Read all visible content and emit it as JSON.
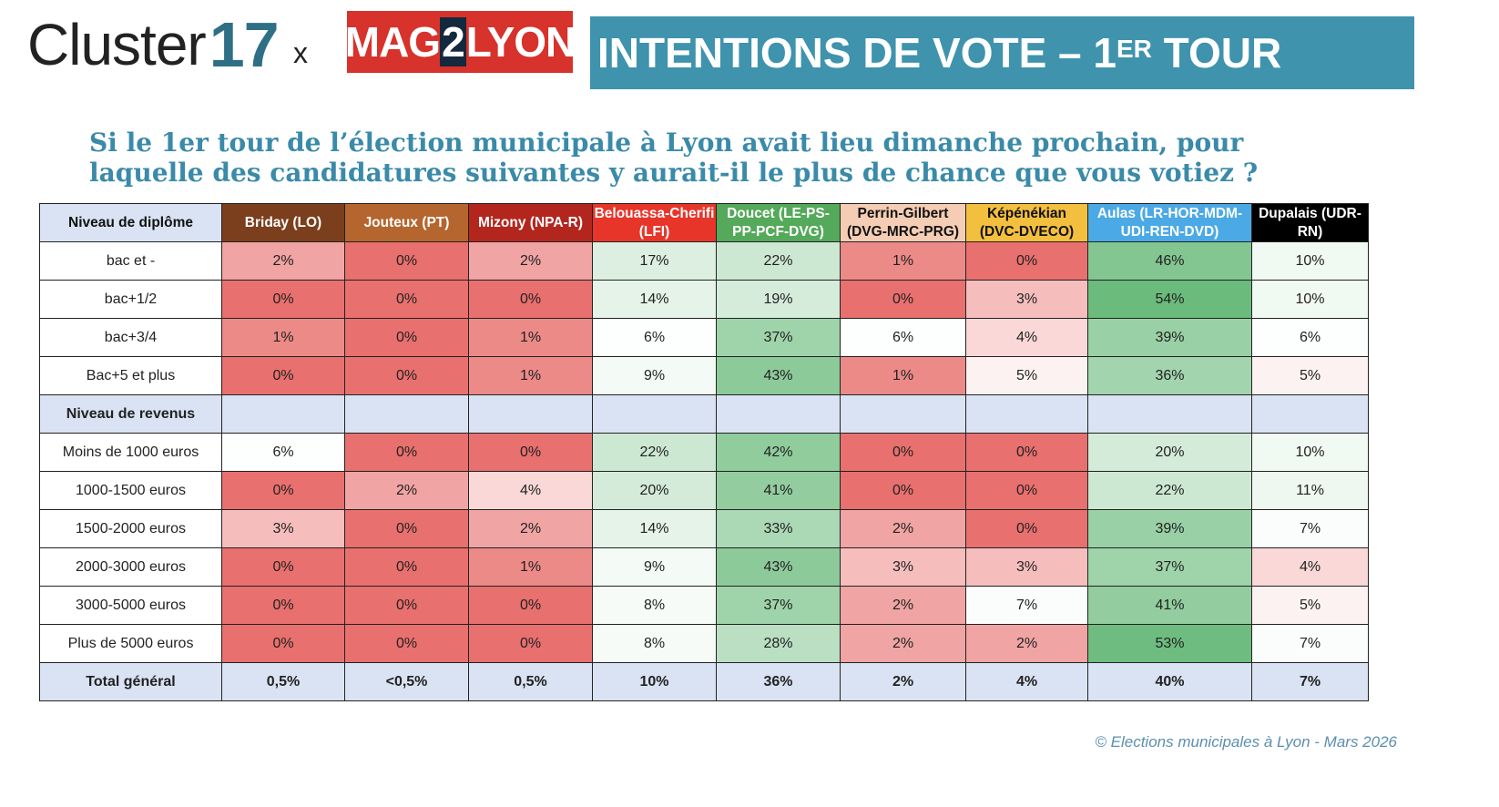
{
  "header": {
    "logo_cluster": "Cluster17",
    "logo_cluster_word": "Cluster",
    "logo_cluster_num": "17",
    "separator": "x",
    "logo_mag_a": "MAG",
    "logo_mag_b": "2",
    "logo_mag_c": "LYON",
    "title_main": "INTENTIONS DE VOTE – 1",
    "title_sup": "ER",
    "title_end": " TOUR"
  },
  "question": "Si le 1er tour de l’élection municipale à Lyon avait lieu dimanche prochain, pour laquelle des candidatures suivantes y aurait-il le plus de chance que vous votiez ?",
  "footer": "© Elections municipales à Lyon - Mars 2026",
  "colors": {
    "banner": "#3f93ad",
    "low": "#e8706e",
    "mid": "#ffffff",
    "high": "#6bbb7c"
  },
  "chart_data": {
    "type": "heatmap",
    "title": "INTENTIONS DE VOTE – 1ER TOUR",
    "unit": "%",
    "first_header": "Niveau de diplôme",
    "columns": [
      {
        "label": "Briday (LO)",
        "color": "#7b3f1d",
        "text": "#ffffff"
      },
      {
        "label": "Jouteux (PT)",
        "color": "#b5652e",
        "text": "#ffffff"
      },
      {
        "label": "Mizony (NPA-R)",
        "color": "#b3261e",
        "text": "#ffffff"
      },
      {
        "label": "Belouassa-Cherifi (LFI)",
        "color": "#e8352a",
        "text": "#ffffff"
      },
      {
        "label": "Doucet (LE-PS-PP-PCF-DVG)",
        "color": "#54a95a",
        "text": "#ffffff"
      },
      {
        "label": "Perrin-Gilbert (DVG-MRC-PRG)",
        "color": "#f5cdb4",
        "text": "#111111"
      },
      {
        "label": "Képénékian (DVC-DVECO)",
        "color": "#f3bf3f",
        "text": "#111111"
      },
      {
        "label": "Aulas (LR-HOR-MDM-UDI-REN-DVD)",
        "color": "#4ba9e6",
        "text": "#ffffff"
      },
      {
        "label": "Dupalais (UDR-RN)",
        "color": "#000000",
        "text": "#ffffff"
      }
    ],
    "rows": [
      {
        "label": "bac et -",
        "values": [
          "2%",
          "0%",
          "2%",
          "17%",
          "22%",
          "1%",
          "0%",
          "46%",
          "10%"
        ]
      },
      {
        "label": "bac+1/2",
        "values": [
          "0%",
          "0%",
          "0%",
          "14%",
          "19%",
          "0%",
          "3%",
          "54%",
          "10%"
        ]
      },
      {
        "label": "bac+3/4",
        "values": [
          "1%",
          "0%",
          "1%",
          "6%",
          "37%",
          "6%",
          "4%",
          "39%",
          "6%"
        ]
      },
      {
        "label": "Bac+5 et plus",
        "values": [
          "0%",
          "0%",
          "1%",
          "9%",
          "43%",
          "1%",
          "5%",
          "36%",
          "5%"
        ]
      },
      {
        "label": "Niveau de revenus",
        "section": true
      },
      {
        "label": "Moins de 1000 euros",
        "values": [
          "6%",
          "0%",
          "0%",
          "22%",
          "42%",
          "0%",
          "0%",
          "20%",
          "10%"
        ]
      },
      {
        "label": "1000-1500 euros",
        "values": [
          "0%",
          "2%",
          "4%",
          "20%",
          "41%",
          "0%",
          "0%",
          "22%",
          "11%"
        ]
      },
      {
        "label": "1500-2000 euros",
        "values": [
          "3%",
          "0%",
          "2%",
          "14%",
          "33%",
          "2%",
          "0%",
          "39%",
          "7%"
        ]
      },
      {
        "label": "2000-3000 euros",
        "values": [
          "0%",
          "0%",
          "1%",
          "9%",
          "43%",
          "3%",
          "3%",
          "37%",
          "4%"
        ]
      },
      {
        "label": "3000-5000 euros",
        "values": [
          "0%",
          "0%",
          "0%",
          "8%",
          "37%",
          "2%",
          "7%",
          "41%",
          "5%"
        ]
      },
      {
        "label": "Plus de 5000 euros",
        "values": [
          "0%",
          "0%",
          "0%",
          "8%",
          "28%",
          "2%",
          "2%",
          "53%",
          "7%"
        ]
      },
      {
        "label": "Total général",
        "total": true,
        "values": [
          "0,5%",
          "<0,5%",
          "0,5%",
          "10%",
          "36%",
          "2%",
          "4%",
          "40%",
          "7%"
        ]
      }
    ]
  }
}
